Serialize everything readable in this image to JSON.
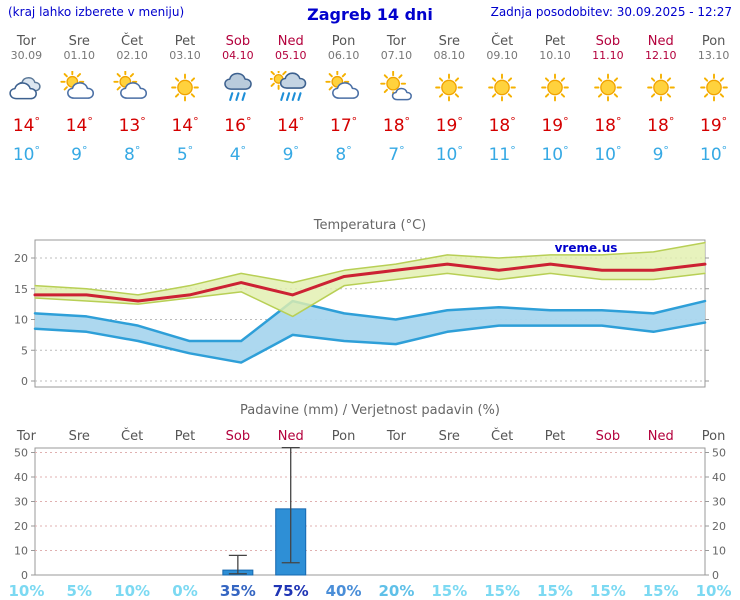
{
  "header": {
    "left_note": "(kraj lahko izberete v meniju)",
    "title": "Zagreb 14 dni",
    "last_update": "Zadnja posodobitev: 30.09.2025 - 12:27"
  },
  "watermark": "vreme.us",
  "colors": {
    "header_blue": "#0101cd",
    "weekday": "#555555",
    "weekend": "#b3003c",
    "tmax_red": "#d40000",
    "tmin_blue": "#36a9e4",
    "chart_title_gray": "#666666",
    "axis_gray": "#999999",
    "grid_gray": "#bcbcbc",
    "grid_pink": "#e0b0b0",
    "temp_line_red": "#cc2233",
    "temp_band_green_fill": "#e2efae",
    "temp_band_green_edge": "#b8cf55",
    "temp_min_line_blue": "#2e9fd8",
    "temp_band_blue_fill": "#a9d6ee",
    "bar_blue": "#2e8fd6",
    "bar_edge": "#1668b0",
    "whisker": "#444444"
  },
  "days": [
    {
      "name": "Tor",
      "date": "30.09",
      "weekend": false,
      "icon": "cloudy",
      "tmax": 14,
      "tmin": 10
    },
    {
      "name": "Sre",
      "date": "01.10",
      "weekend": false,
      "icon": "partly-cloudy",
      "tmax": 14,
      "tmin": 9
    },
    {
      "name": "Čet",
      "date": "02.10",
      "weekend": false,
      "icon": "partly-cloudy",
      "tmax": 13,
      "tmin": 8
    },
    {
      "name": "Pet",
      "date": "03.10",
      "weekend": false,
      "icon": "sunny",
      "tmax": 14,
      "tmin": 5
    },
    {
      "name": "Sob",
      "date": "04.10",
      "weekend": true,
      "icon": "rain",
      "tmax": 16,
      "tmin": 4
    },
    {
      "name": "Ned",
      "date": "05.10",
      "weekend": true,
      "icon": "rain-showers",
      "tmax": 14,
      "tmin": 9
    },
    {
      "name": "Pon",
      "date": "06.10",
      "weekend": false,
      "icon": "partly-cloudy",
      "tmax": 17,
      "tmin": 8
    },
    {
      "name": "Tor",
      "date": "07.10",
      "weekend": false,
      "icon": "mostly-sunny",
      "tmax": 18,
      "tmin": 7
    },
    {
      "name": "Sre",
      "date": "08.10",
      "weekend": false,
      "icon": "sunny",
      "tmax": 19,
      "tmin": 10
    },
    {
      "name": "Čet",
      "date": "09.10",
      "weekend": false,
      "icon": "sunny",
      "tmax": 18,
      "tmin": 11
    },
    {
      "name": "Pet",
      "date": "10.10",
      "weekend": false,
      "icon": "sunny",
      "tmax": 19,
      "tmin": 10
    },
    {
      "name": "Sob",
      "date": "11.10",
      "weekend": true,
      "icon": "sunny",
      "tmax": 18,
      "tmin": 10
    },
    {
      "name": "Ned",
      "date": "12.10",
      "weekend": true,
      "icon": "sunny",
      "tmax": 18,
      "tmin": 9
    },
    {
      "name": "Pon",
      "date": "13.10",
      "weekend": false,
      "icon": "sunny",
      "tmax": 19,
      "tmin": 10
    }
  ],
  "chart_data": [
    {
      "type": "area",
      "title": "Temperatura (°C)",
      "x_categories": [
        "Tor",
        "Sre",
        "Čet",
        "Pet",
        "Sob",
        "Ned",
        "Pon",
        "Tor",
        "Sre",
        "Čet",
        "Pet",
        "Sob",
        "Ned",
        "Pon"
      ],
      "ylim": [
        0,
        23
      ],
      "yticks": [
        0,
        5,
        10,
        15,
        20
      ],
      "grid": true,
      "series": [
        {
          "name": "max_temp",
          "values": [
            14,
            14,
            13,
            14,
            16,
            14,
            17,
            18,
            19,
            18,
            19,
            18,
            18,
            19
          ]
        },
        {
          "name": "max_band_upper",
          "values": [
            15.5,
            15,
            14,
            15.5,
            17.5,
            16,
            18,
            19,
            20.5,
            20,
            20.5,
            20.5,
            21,
            22.5
          ]
        },
        {
          "name": "max_band_lower",
          "values": [
            13.5,
            13,
            12.5,
            13.5,
            14.5,
            10.5,
            15.5,
            16.5,
            17.5,
            16.5,
            17.5,
            16.5,
            16.5,
            17.5
          ]
        },
        {
          "name": "min_temp",
          "values": [
            10,
            9,
            8,
            5,
            4,
            9,
            8,
            7,
            10,
            11,
            10,
            10,
            9,
            10
          ]
        },
        {
          "name": "min_band_upper",
          "values": [
            11,
            10.5,
            9,
            6.5,
            6.5,
            13,
            11,
            10,
            11.5,
            12,
            11.5,
            11.5,
            11,
            13
          ]
        },
        {
          "name": "min_band_lower",
          "values": [
            8.5,
            8,
            6.5,
            4.5,
            3,
            7.5,
            6.5,
            6,
            8,
            9,
            9,
            9,
            8,
            9.5
          ]
        }
      ]
    },
    {
      "type": "bar",
      "title": "Padavine (mm) / Verjetnost padavin (%)",
      "x_categories": [
        "Tor",
        "Sre",
        "Čet",
        "Pet",
        "Sob",
        "Ned",
        "Pon",
        "Tor",
        "Sre",
        "Čet",
        "Pet",
        "Sob",
        "Ned",
        "Pon"
      ],
      "ylim": [
        0,
        53
      ],
      "yticks": [
        0,
        10,
        20,
        30,
        40,
        50
      ],
      "values": [
        0,
        0,
        0,
        0,
        2,
        27,
        0,
        0,
        0,
        0,
        0,
        0,
        0,
        0
      ],
      "whiskers": [
        null,
        null,
        null,
        null,
        {
          "low": 0.5,
          "high": 8
        },
        {
          "low": 5,
          "high": 52
        },
        null,
        null,
        null,
        null,
        null,
        null,
        null,
        null
      ],
      "probabilities": [
        "10%",
        "5%",
        "10%",
        "0%",
        "35%",
        "75%",
        "40%",
        "20%",
        "15%",
        "15%",
        "15%",
        "15%",
        "15%",
        "10%"
      ],
      "prob_colors": [
        "#7cd9f2",
        "#7cd9f2",
        "#7cd9f2",
        "#7cd9f2",
        "#3566c2",
        "#1f35b5",
        "#4a8ed8",
        "#5fc0e8",
        "#7cd9f2",
        "#7cd9f2",
        "#7cd9f2",
        "#7cd9f2",
        "#7cd9f2",
        "#7cd9f2"
      ]
    }
  ]
}
